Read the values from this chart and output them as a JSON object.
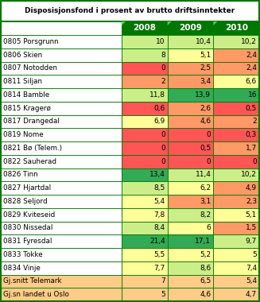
{
  "title": "Disposisjonsfond i prosent av brutto driftsinntekter",
  "columns": [
    "2008",
    "2009",
    "2010"
  ],
  "rows": [
    {
      "label": "0805 Porsgrunn",
      "values": [
        10,
        10.4,
        10.2
      ]
    },
    {
      "label": "0806 Skien",
      "values": [
        8,
        5.1,
        2.4
      ]
    },
    {
      "label": "0807 Notodden",
      "values": [
        0,
        2.5,
        2.4
      ]
    },
    {
      "label": "0811 Siljan",
      "values": [
        2,
        3.4,
        6.6
      ]
    },
    {
      "label": "0814 Bamble",
      "values": [
        11.8,
        13.9,
        16
      ]
    },
    {
      "label": "0815 Kragerø",
      "values": [
        0.6,
        2.6,
        0.5
      ]
    },
    {
      "label": "0817 Drangedal",
      "values": [
        6.9,
        4.6,
        2
      ]
    },
    {
      "label": "0819 Nome",
      "values": [
        0,
        0,
        0.3
      ]
    },
    {
      "label": "0821 Bø (Telem.)",
      "values": [
        0,
        0.5,
        1.7
      ]
    },
    {
      "label": "0822 Sauherad",
      "values": [
        0,
        0,
        0
      ]
    },
    {
      "label": "0826 Tinn",
      "values": [
        13.4,
        11.4,
        10.2
      ]
    },
    {
      "label": "0827 Hjartdal",
      "values": [
        8.5,
        6.2,
        4.9
      ]
    },
    {
      "label": "0828 Seljord",
      "values": [
        5.4,
        3.1,
        2.3
      ]
    },
    {
      "label": "0829 Kviteseid",
      "values": [
        7.8,
        8.2,
        5.1
      ]
    },
    {
      "label": "0830 Nissedal",
      "values": [
        8.4,
        6,
        1.5
      ]
    },
    {
      "label": "0831 Fyresdal",
      "values": [
        21.4,
        17.1,
        9.7
      ]
    },
    {
      "label": "0833 Tokke",
      "values": [
        5.5,
        5.2,
        5
      ]
    },
    {
      "label": "0834 Vinje",
      "values": [
        7.7,
        8.6,
        7.4
      ]
    },
    {
      "label": "Gj.snitt Telemark",
      "values": [
        7,
        6.5,
        5.4
      ]
    },
    {
      "label": "Gj.sn landet u Oslo",
      "values": [
        5,
        4.6,
        4.7
      ]
    }
  ],
  "col_header_bg": "#007700",
  "border_color": "#007700",
  "colors": {
    "red": "#ff5555",
    "orange": "#ff9966",
    "yellow": "#ffff99",
    "light_green": "#ccee88",
    "green": "#33aa55",
    "summary": "#ffcc88"
  },
  "title_fontsize": 6.5,
  "label_fontsize": 6.3,
  "value_fontsize": 6.5,
  "header_fontsize": 7.5
}
